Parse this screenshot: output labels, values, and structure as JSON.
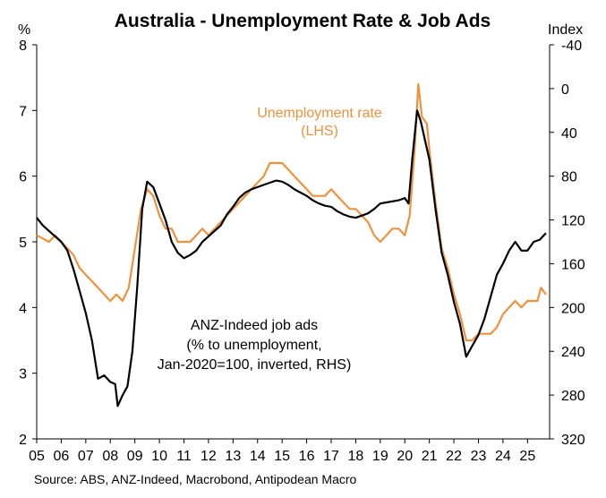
{
  "chart_data": {
    "type": "line",
    "title": "Australia - Unemployment Rate & Job Ads",
    "source": "Source: ABS, ANZ-Indeed, Macrobond, Antipodean Macro",
    "left_axis": {
      "label": "%",
      "min": 2,
      "max": 8,
      "ticks": [
        "2",
        "3",
        "4",
        "5",
        "6",
        "7",
        "8"
      ]
    },
    "right_axis": {
      "label": "Index",
      "min": -40,
      "max": 320,
      "inverted": true,
      "ticks": [
        "-40",
        "0",
        "40",
        "80",
        "120",
        "160",
        "200",
        "240",
        "280",
        "320"
      ]
    },
    "x_axis": {
      "min": 2005,
      "max": 2025.9,
      "ticks": [
        "05",
        "06",
        "07",
        "08",
        "09",
        "10",
        "11",
        "12",
        "13",
        "14",
        "15",
        "16",
        "17",
        "18",
        "19",
        "20",
        "21",
        "22",
        "23",
        "24",
        "25"
      ]
    },
    "colors": {
      "unemployment": "#F0913C",
      "job_ads": "#000000"
    },
    "annotations": {
      "unemployment_lines": [
        "Unemployment rate",
        "(LHS)"
      ],
      "job_ads_lines": [
        "ANZ-Indeed job ads",
        "(% to unemployment,",
        "Jan-2020=100, inverted, RHS)"
      ]
    },
    "series": [
      {
        "name": "Unemployment rate",
        "axis": "left",
        "points": [
          [
            2005.0,
            5.1
          ],
          [
            2005.25,
            5.05
          ],
          [
            2005.5,
            5.0
          ],
          [
            2005.75,
            5.1
          ],
          [
            2006.0,
            5.0
          ],
          [
            2006.25,
            4.9
          ],
          [
            2006.5,
            4.8
          ],
          [
            2006.75,
            4.6
          ],
          [
            2007.0,
            4.5
          ],
          [
            2007.25,
            4.4
          ],
          [
            2007.5,
            4.3
          ],
          [
            2007.75,
            4.2
          ],
          [
            2008.0,
            4.1
          ],
          [
            2008.25,
            4.2
          ],
          [
            2008.5,
            4.1
          ],
          [
            2008.75,
            4.3
          ],
          [
            2009.0,
            4.9
          ],
          [
            2009.25,
            5.5
          ],
          [
            2009.5,
            5.8
          ],
          [
            2009.75,
            5.7
          ],
          [
            2010.0,
            5.4
          ],
          [
            2010.25,
            5.2
          ],
          [
            2010.5,
            5.2
          ],
          [
            2010.75,
            5.0
          ],
          [
            2011.0,
            5.0
          ],
          [
            2011.25,
            5.0
          ],
          [
            2011.5,
            5.1
          ],
          [
            2011.75,
            5.2
          ],
          [
            2012.0,
            5.1
          ],
          [
            2012.25,
            5.2
          ],
          [
            2012.5,
            5.3
          ],
          [
            2012.75,
            5.4
          ],
          [
            2013.0,
            5.5
          ],
          [
            2013.25,
            5.6
          ],
          [
            2013.5,
            5.7
          ],
          [
            2013.75,
            5.8
          ],
          [
            2014.0,
            5.9
          ],
          [
            2014.25,
            6.0
          ],
          [
            2014.5,
            6.2
          ],
          [
            2014.75,
            6.2
          ],
          [
            2015.0,
            6.2
          ],
          [
            2015.25,
            6.1
          ],
          [
            2015.5,
            6.0
          ],
          [
            2015.75,
            5.9
          ],
          [
            2016.0,
            5.8
          ],
          [
            2016.25,
            5.7
          ],
          [
            2016.5,
            5.7
          ],
          [
            2016.75,
            5.7
          ],
          [
            2017.0,
            5.8
          ],
          [
            2017.25,
            5.7
          ],
          [
            2017.5,
            5.6
          ],
          [
            2017.75,
            5.5
          ],
          [
            2018.0,
            5.5
          ],
          [
            2018.25,
            5.4
          ],
          [
            2018.5,
            5.3
          ],
          [
            2018.75,
            5.1
          ],
          [
            2019.0,
            5.0
          ],
          [
            2019.25,
            5.1
          ],
          [
            2019.5,
            5.2
          ],
          [
            2019.75,
            5.2
          ],
          [
            2020.0,
            5.1
          ],
          [
            2020.2,
            5.4
          ],
          [
            2020.4,
            6.4
          ],
          [
            2020.55,
            7.4
          ],
          [
            2020.7,
            6.9
          ],
          [
            2020.9,
            6.8
          ],
          [
            2021.0,
            6.4
          ],
          [
            2021.25,
            5.6
          ],
          [
            2021.5,
            4.9
          ],
          [
            2021.75,
            4.6
          ],
          [
            2022.0,
            4.2
          ],
          [
            2022.25,
            3.9
          ],
          [
            2022.5,
            3.5
          ],
          [
            2022.75,
            3.5
          ],
          [
            2023.0,
            3.6
          ],
          [
            2023.25,
            3.6
          ],
          [
            2023.5,
            3.6
          ],
          [
            2023.75,
            3.7
          ],
          [
            2024.0,
            3.9
          ],
          [
            2024.25,
            4.0
          ],
          [
            2024.5,
            4.1
          ],
          [
            2024.75,
            4.0
          ],
          [
            2025.0,
            4.1
          ],
          [
            2025.25,
            4.1
          ],
          [
            2025.4,
            4.1
          ],
          [
            2025.55,
            4.3
          ],
          [
            2025.75,
            4.2
          ]
        ]
      },
      {
        "name": "ANZ-Indeed job ads",
        "axis": "right",
        "points": [
          [
            2005.0,
            118
          ],
          [
            2005.25,
            125
          ],
          [
            2005.5,
            130
          ],
          [
            2005.75,
            135
          ],
          [
            2006.0,
            140
          ],
          [
            2006.25,
            148
          ],
          [
            2006.5,
            165
          ],
          [
            2006.75,
            185
          ],
          [
            2007.0,
            205
          ],
          [
            2007.25,
            230
          ],
          [
            2007.5,
            265
          ],
          [
            2007.75,
            262
          ],
          [
            2008.0,
            268
          ],
          [
            2008.2,
            270
          ],
          [
            2008.3,
            290
          ],
          [
            2008.5,
            280
          ],
          [
            2008.7,
            272
          ],
          [
            2008.9,
            240
          ],
          [
            2009.1,
            180
          ],
          [
            2009.3,
            110
          ],
          [
            2009.5,
            85
          ],
          [
            2009.75,
            90
          ],
          [
            2010.0,
            105
          ],
          [
            2010.25,
            120
          ],
          [
            2010.5,
            140
          ],
          [
            2010.75,
            150
          ],
          [
            2011.0,
            155
          ],
          [
            2011.25,
            152
          ],
          [
            2011.5,
            148
          ],
          [
            2011.75,
            140
          ],
          [
            2012.0,
            135
          ],
          [
            2012.25,
            130
          ],
          [
            2012.5,
            125
          ],
          [
            2012.75,
            115
          ],
          [
            2013.0,
            108
          ],
          [
            2013.25,
            100
          ],
          [
            2013.5,
            95
          ],
          [
            2013.75,
            92
          ],
          [
            2014.0,
            90
          ],
          [
            2014.25,
            88
          ],
          [
            2014.5,
            86
          ],
          [
            2014.75,
            84
          ],
          [
            2015.0,
            85
          ],
          [
            2015.25,
            88
          ],
          [
            2015.5,
            92
          ],
          [
            2015.75,
            95
          ],
          [
            2016.0,
            98
          ],
          [
            2016.25,
            102
          ],
          [
            2016.5,
            105
          ],
          [
            2016.75,
            107
          ],
          [
            2017.0,
            108
          ],
          [
            2017.25,
            112
          ],
          [
            2017.5,
            115
          ],
          [
            2017.75,
            117
          ],
          [
            2018.0,
            118
          ],
          [
            2018.25,
            116
          ],
          [
            2018.5,
            114
          ],
          [
            2018.75,
            110
          ],
          [
            2019.0,
            105
          ],
          [
            2019.25,
            104
          ],
          [
            2019.5,
            103
          ],
          [
            2019.75,
            102
          ],
          [
            2020.0,
            100
          ],
          [
            2020.15,
            105
          ],
          [
            2020.3,
            65
          ],
          [
            2020.5,
            20
          ],
          [
            2020.65,
            30
          ],
          [
            2020.8,
            45
          ],
          [
            2021.0,
            65
          ],
          [
            2021.25,
            110
          ],
          [
            2021.5,
            150
          ],
          [
            2021.75,
            170
          ],
          [
            2022.0,
            195
          ],
          [
            2022.25,
            215
          ],
          [
            2022.5,
            245
          ],
          [
            2022.75,
            235
          ],
          [
            2023.0,
            225
          ],
          [
            2023.25,
            210
          ],
          [
            2023.5,
            190
          ],
          [
            2023.75,
            170
          ],
          [
            2024.0,
            160
          ],
          [
            2024.25,
            148
          ],
          [
            2024.5,
            140
          ],
          [
            2024.75,
            148
          ],
          [
            2025.0,
            148
          ],
          [
            2025.25,
            140
          ],
          [
            2025.5,
            138
          ],
          [
            2025.75,
            132
          ]
        ]
      }
    ]
  }
}
